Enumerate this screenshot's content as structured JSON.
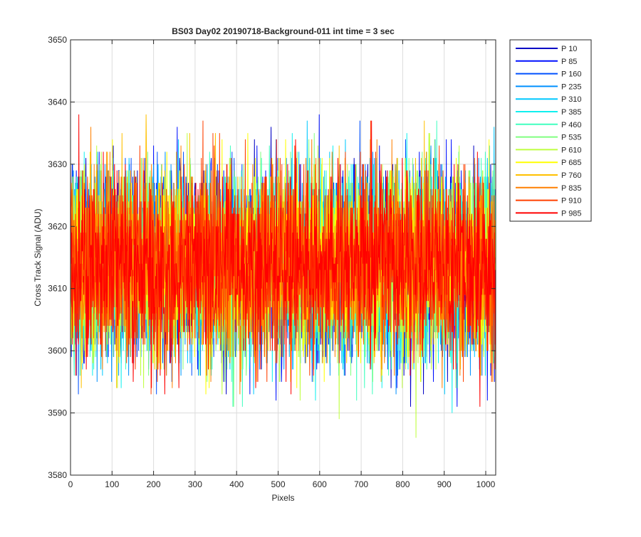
{
  "chart_data": {
    "type": "line",
    "title": "BS03 Day02 20190718-Background-011 int time = 3 sec",
    "xlabel": "Pixels",
    "ylabel": "Cross Track Signal (ADU)",
    "xlim": [
      0,
      1024
    ],
    "ylim": [
      3580,
      3650
    ],
    "xticks": [
      0,
      100,
      200,
      300,
      400,
      500,
      600,
      700,
      800,
      900,
      1000
    ],
    "yticks": [
      3580,
      3590,
      3600,
      3610,
      3620,
      3630,
      3640,
      3650
    ],
    "grid": true,
    "legend_position": "outside-top-right",
    "n_points": 1024,
    "mean_level": 3614,
    "noise_sigma": 7.5,
    "series": [
      {
        "name": "P 10",
        "color": "#0000c4"
      },
      {
        "name": "P 85",
        "color": "#0010ff"
      },
      {
        "name": "P 160",
        "color": "#0050ff"
      },
      {
        "name": "P 235",
        "color": "#0090ff"
      },
      {
        "name": "P 310",
        "color": "#00c8ff"
      },
      {
        "name": "P 385",
        "color": "#10f0ef"
      },
      {
        "name": "P 460",
        "color": "#40ffbf"
      },
      {
        "name": "P 535",
        "color": "#80ff80"
      },
      {
        "name": "P 610",
        "color": "#bfff40"
      },
      {
        "name": "P 685",
        "color": "#ffff00"
      },
      {
        "name": "P 760",
        "color": "#ffc000"
      },
      {
        "name": "P 835",
        "color": "#ff8000"
      },
      {
        "name": "P 910",
        "color": "#ff4000"
      },
      {
        "name": "P 985",
        "color": "#ff0000"
      }
    ]
  }
}
